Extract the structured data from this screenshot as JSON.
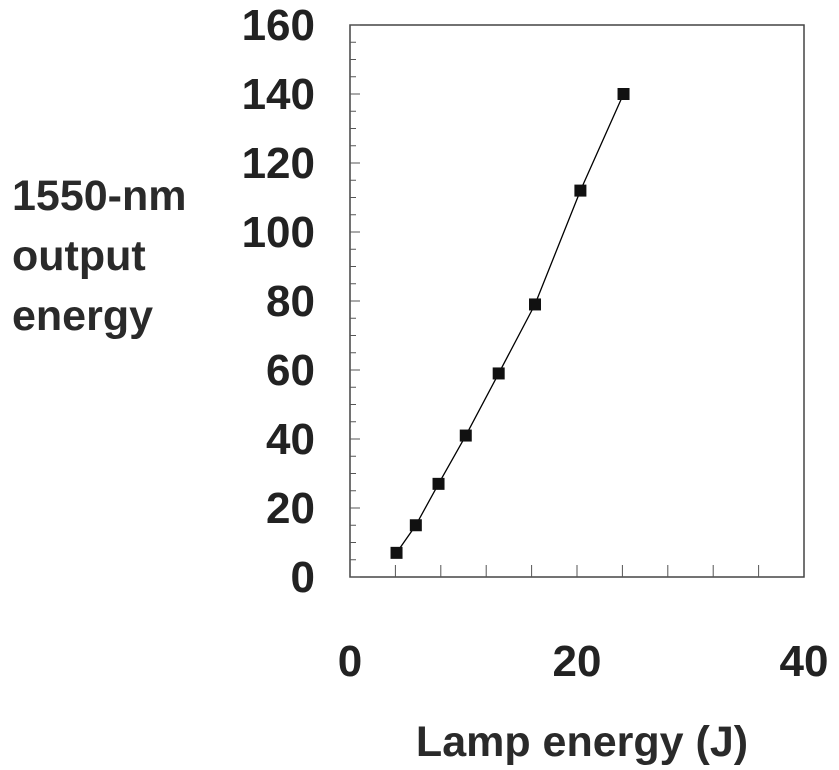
{
  "chart_data": {
    "type": "scatter",
    "xlabel": "Lamp energy (J)",
    "ylabel_lines": [
      "1550-nm",
      "output",
      "energy"
    ],
    "xlim": [
      0,
      40
    ],
    "ylim": [
      0,
      160
    ],
    "x_ticks": [
      "0",
      "20",
      "40"
    ],
    "y_ticks": [
      "0",
      "20",
      "40",
      "60",
      "80",
      "100",
      "120",
      "140",
      "160"
    ],
    "grid": false,
    "legend": "none",
    "series": [
      {
        "x": [
          4.1,
          5.8,
          7.8,
          10.2,
          13.1,
          16.3,
          20.3,
          24.1
        ],
        "y": [
          7,
          15,
          27,
          41,
          59,
          79,
          112,
          140
        ],
        "connected": true,
        "marker": "square",
        "color": "#111111"
      }
    ],
    "line_color": "#000000"
  }
}
